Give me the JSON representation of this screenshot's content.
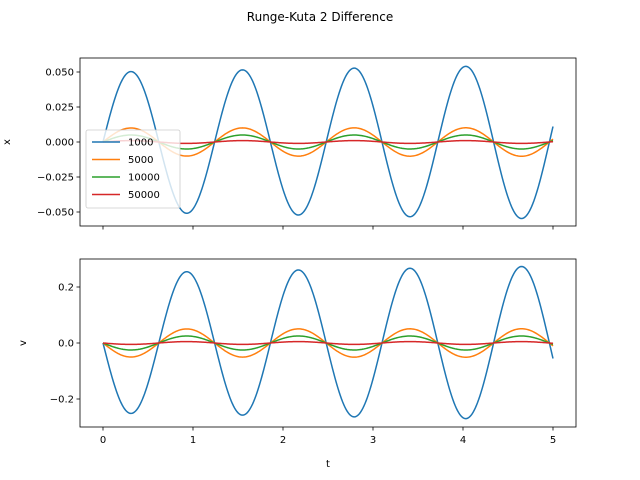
{
  "chart_data": {
    "type": "line",
    "title": "Runge-Kuta 2 Difference",
    "xlabel": "t",
    "x_range": [
      0,
      5
    ],
    "x_ticks": [
      0,
      1,
      2,
      3,
      4,
      5
    ],
    "legend": {
      "placement": "center-left",
      "entries": [
        "1000",
        "5000",
        "10000",
        "50000"
      ]
    },
    "grid": false,
    "subplots": [
      {
        "id": "x",
        "ylabel": "x",
        "ylim": [
          -0.06,
          0.06
        ],
        "y_ticks": [
          0.05,
          0.025,
          0.0,
          -0.025,
          -0.05
        ],
        "y_tick_labels": [
          "0.050",
          "0.025",
          "0.000",
          "−0.025",
          "−0.050"
        ],
        "signal": "sin",
        "series": [
          {
            "name": "1000",
            "color": "#1f77b4",
            "amplitude_start": 0.05,
            "amplitude_end": 0.055
          },
          {
            "name": "5000",
            "color": "#ff7f0e",
            "amplitude_start": 0.01,
            "amplitude_end": 0.0102
          },
          {
            "name": "10000",
            "color": "#2ca02c",
            "amplitude_start": 0.005,
            "amplitude_end": 0.005
          },
          {
            "name": "50000",
            "color": "#d62728",
            "amplitude_start": 0.001,
            "amplitude_end": 0.001
          }
        ]
      },
      {
        "id": "v",
        "ylabel": "v",
        "ylim": [
          -0.3,
          0.3
        ],
        "y_ticks": [
          0.2,
          0.0,
          -0.2
        ],
        "y_tick_labels": [
          "0.2",
          "0.0",
          "−0.2"
        ],
        "signal": "neg-sin",
        "series": [
          {
            "name": "1000",
            "color": "#1f77b4",
            "amplitude_start": 0.25,
            "amplitude_end": 0.275
          },
          {
            "name": "5000",
            "color": "#ff7f0e",
            "amplitude_start": 0.05,
            "amplitude_end": 0.051
          },
          {
            "name": "10000",
            "color": "#2ca02c",
            "amplitude_start": 0.025,
            "amplitude_end": 0.025
          },
          {
            "name": "50000",
            "color": "#d62728",
            "amplitude_start": 0.005,
            "amplitude_end": 0.005
          }
        ]
      }
    ],
    "period": 1.24
  }
}
